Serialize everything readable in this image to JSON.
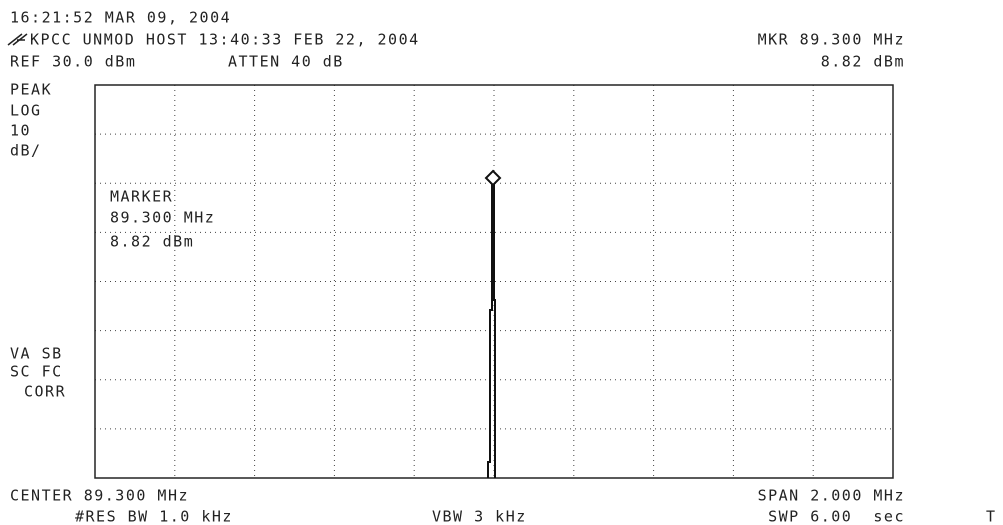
{
  "header": {
    "timestamp": "16:21:52 MAR 09, 2004",
    "title": "KPCC UNMOD HOST 13:40:33 FEB 22, 2004",
    "marker_readout": "MKR 89.300 MHz",
    "reference": "REF 30.0 dBm",
    "attenuation": "ATTEN 40 dB",
    "marker_level": "8.82 dBm"
  },
  "left_labels": [
    "PEAK",
    "LOG",
    "10",
    "dB/"
  ],
  "correction_labels": [
    "VA SB",
    "SC FC",
    "CORR"
  ],
  "marker": {
    "label": "MARKER",
    "frequency": "89.300 MHz",
    "level": "8.82 dBm"
  },
  "footer": {
    "center": "CENTER 89.300 MHz",
    "span": "SPAN 2.000 MHz",
    "rbw": "#RES BW 1.0 kHz",
    "vbw": "VBW 3 kHz",
    "sweep": "SWP 6.00  sec",
    "trigger": "T"
  }
}
